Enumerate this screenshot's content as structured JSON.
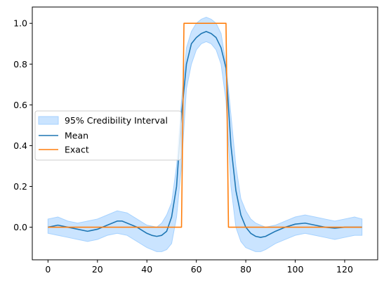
{
  "chart_data": {
    "type": "line",
    "title": "",
    "xlabel": "",
    "ylabel": "",
    "xlim": [
      -6.35,
      133.35
    ],
    "ylim": [
      -0.16,
      1.08
    ],
    "x_ticks": [
      0,
      20,
      40,
      60,
      80,
      100,
      120
    ],
    "y_ticks": [
      0.0,
      0.2,
      0.4,
      0.6,
      0.8,
      1.0
    ],
    "x_tick_labels": [
      "0",
      "20",
      "40",
      "60",
      "80",
      "100",
      "120"
    ],
    "y_tick_labels": [
      "0.0",
      "0.2",
      "0.4",
      "0.6",
      "0.8",
      "1.0"
    ],
    "legend_position": "center-left",
    "legend": [
      {
        "label": "95% Credibility Interval",
        "kind": "band",
        "color": "#a6d2ff"
      },
      {
        "label": "Mean",
        "kind": "line",
        "color": "#1f77b4"
      },
      {
        "label": "Exact",
        "kind": "line",
        "color": "#ff7f0e"
      }
    ],
    "series": [
      {
        "name": "95% Credibility Interval",
        "kind": "band",
        "color": "#a6d2ff",
        "x": [
          0,
          4,
          8,
          12,
          16,
          20,
          24,
          28,
          32,
          36,
          40,
          44,
          46,
          48,
          50,
          52,
          54,
          56,
          58,
          60,
          62,
          64,
          66,
          68,
          70,
          72,
          74,
          76,
          78,
          80,
          82,
          84,
          86,
          88,
          92,
          96,
          100,
          104,
          108,
          112,
          116,
          120,
          124,
          127
        ],
        "upper": [
          0.04,
          0.05,
          0.03,
          0.02,
          0.03,
          0.04,
          0.06,
          0.08,
          0.07,
          0.04,
          0.01,
          0.0,
          0.02,
          0.06,
          0.12,
          0.3,
          0.62,
          0.88,
          0.96,
          1.0,
          1.02,
          1.03,
          1.02,
          1.0,
          0.95,
          0.8,
          0.55,
          0.3,
          0.14,
          0.08,
          0.04,
          0.02,
          0.01,
          0.0,
          0.01,
          0.03,
          0.05,
          0.06,
          0.05,
          0.04,
          0.03,
          0.04,
          0.05,
          0.04
        ],
        "lower": [
          -0.03,
          -0.04,
          -0.05,
          -0.06,
          -0.07,
          -0.06,
          -0.04,
          -0.03,
          -0.04,
          -0.07,
          -0.1,
          -0.12,
          -0.12,
          -0.11,
          -0.08,
          0.05,
          0.3,
          0.68,
          0.8,
          0.87,
          0.9,
          0.91,
          0.9,
          0.87,
          0.8,
          0.62,
          0.2,
          0.0,
          -0.07,
          -0.1,
          -0.11,
          -0.12,
          -0.12,
          -0.11,
          -0.08,
          -0.06,
          -0.04,
          -0.03,
          -0.04,
          -0.05,
          -0.06,
          -0.05,
          -0.04,
          -0.04
        ]
      },
      {
        "name": "Mean",
        "kind": "line",
        "color": "#1f77b4",
        "x": [
          0,
          4,
          8,
          12,
          16,
          20,
          24,
          28,
          30,
          32,
          36,
          40,
          42,
          44,
          46,
          48,
          50,
          52,
          54,
          56,
          58,
          60,
          62,
          64,
          66,
          68,
          70,
          72,
          74,
          76,
          78,
          80,
          82,
          84,
          86,
          88,
          92,
          96,
          100,
          104,
          108,
          112,
          116,
          120,
          124,
          127
        ],
        "y": [
          0.0,
          0.01,
          0.0,
          -0.01,
          -0.02,
          -0.01,
          0.01,
          0.03,
          0.03,
          0.02,
          0.0,
          -0.03,
          -0.04,
          -0.045,
          -0.04,
          -0.02,
          0.05,
          0.2,
          0.55,
          0.8,
          0.9,
          0.93,
          0.95,
          0.96,
          0.95,
          0.93,
          0.88,
          0.78,
          0.4,
          0.18,
          0.06,
          0.0,
          -0.03,
          -0.045,
          -0.05,
          -0.045,
          -0.02,
          0.0,
          0.015,
          0.02,
          0.01,
          0.0,
          -0.005,
          0.0,
          0.0,
          0.0
        ]
      },
      {
        "name": "Exact",
        "kind": "line",
        "color": "#ff7f0e",
        "x": [
          0,
          54,
          55,
          72,
          73,
          127
        ],
        "y": [
          0,
          0,
          1,
          1,
          0,
          0
        ]
      }
    ]
  }
}
